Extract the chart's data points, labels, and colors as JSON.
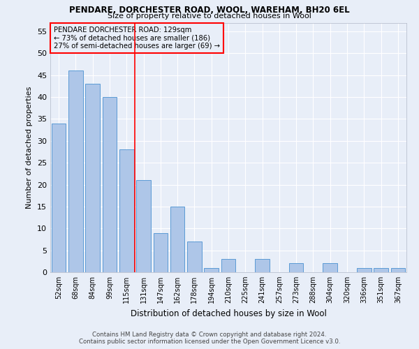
{
  "title1": "PENDARE, DORCHESTER ROAD, WOOL, WAREHAM, BH20 6EL",
  "title2": "Size of property relative to detached houses in Wool",
  "xlabel": "Distribution of detached houses by size in Wool",
  "ylabel": "Number of detached properties",
  "categories": [
    "52sqm",
    "68sqm",
    "84sqm",
    "99sqm",
    "115sqm",
    "131sqm",
    "147sqm",
    "162sqm",
    "178sqm",
    "194sqm",
    "210sqm",
    "225sqm",
    "241sqm",
    "257sqm",
    "273sqm",
    "288sqm",
    "304sqm",
    "320sqm",
    "336sqm",
    "351sqm",
    "367sqm"
  ],
  "values": [
    34,
    46,
    43,
    40,
    28,
    21,
    9,
    15,
    7,
    1,
    3,
    0,
    3,
    0,
    2,
    0,
    2,
    0,
    1,
    1,
    1
  ],
  "bar_color": "#aec6e8",
  "bar_edge_color": "#5b9bd5",
  "property_line_index": 5,
  "annotation_line1": "PENDARE DORCHESTER ROAD: 129sqm",
  "annotation_line2": "← 73% of detached houses are smaller (186)",
  "annotation_line3": "27% of semi-detached houses are larger (69) →",
  "annotation_box_color": "red",
  "ylim": [
    0,
    57
  ],
  "yticks": [
    0,
    5,
    10,
    15,
    20,
    25,
    30,
    35,
    40,
    45,
    50,
    55
  ],
  "footer1": "Contains HM Land Registry data © Crown copyright and database right 2024.",
  "footer2": "Contains public sector information licensed under the Open Government Licence v3.0.",
  "bg_color": "#e8eef8",
  "grid_color": "#ffffff"
}
